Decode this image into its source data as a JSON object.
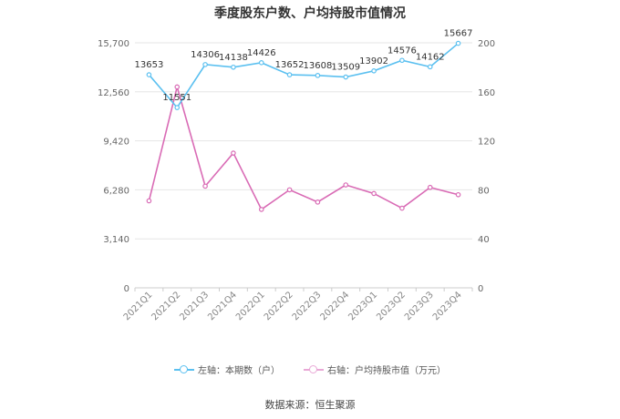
{
  "title": "季度股东户数、户均持股市值情况",
  "source": "数据来源：恒生聚源",
  "chart_data": {
    "type": "line",
    "categories": [
      "2021Q1",
      "2021Q2",
      "2021Q3",
      "2021Q4",
      "2022Q1",
      "2022Q2",
      "2022Q3",
      "2022Q4",
      "2023Q1",
      "2023Q2",
      "2023Q3",
      "2023Q4"
    ],
    "y_left": {
      "ticks": [
        "0",
        "3,140",
        "6,280",
        "9,420",
        "12,560",
        "15,700"
      ],
      "range": [
        0,
        15700
      ]
    },
    "y_right": {
      "ticks": [
        "0",
        "40",
        "80",
        "120",
        "160",
        "200"
      ],
      "range": [
        0,
        200
      ]
    },
    "grid": true,
    "legend_position": "bottom",
    "series": [
      {
        "name": "左轴：本期数（户）",
        "axis": "left",
        "color": "#5bc0f0",
        "values": [
          13653,
          11551,
          14306,
          14138,
          14426,
          13652,
          13608,
          13509,
          13902,
          14576,
          14162,
          15667
        ],
        "labels": [
          "13653",
          "11551",
          "14306",
          "14138",
          "14426",
          "13652",
          "13608",
          "13509",
          "13902",
          "14576",
          "14162",
          "15667"
        ]
      },
      {
        "name": "右轴：户均持股市值（万元）",
        "axis": "right",
        "color": "#d96bb5",
        "values": [
          71,
          164,
          83,
          110,
          64,
          80,
          70,
          84,
          77,
          65,
          82,
          76
        ]
      }
    ]
  }
}
